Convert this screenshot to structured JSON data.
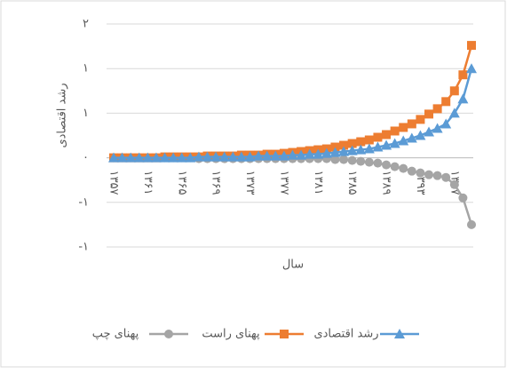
{
  "chart_data": {
    "type": "line",
    "y_label": "رشد اقتصادی",
    "x_label": "سال",
    "categories": [
      "۱۳۵۷",
      null,
      null,
      null,
      "۱۳۶۱",
      null,
      null,
      null,
      "۱۳۶۵",
      null,
      null,
      null,
      "۱۳۶۹",
      null,
      null,
      null,
      "۱۳۷۳",
      null,
      null,
      null,
      "۱۳۷۷",
      null,
      null,
      null,
      "۱۳۸۱",
      null,
      null,
      null,
      "۱۳۸۵",
      null,
      null,
      null,
      "۱۳۸۹",
      null,
      null,
      null,
      "۱۳۹۳",
      null,
      null,
      null,
      "۱۳۹۷",
      null,
      null
    ],
    "series": [
      {
        "name": "رشد اقتصادی",
        "color": "#5b9bd5",
        "marker": "triangle",
        "values": [
          0,
          0,
          0,
          0,
          0,
          0,
          0,
          0,
          0,
          0,
          0.01,
          0.01,
          0.01,
          0.01,
          0.01,
          0.01,
          0.01,
          0.02,
          0.02,
          0.02,
          0.02,
          0.03,
          0.03,
          0.04,
          0.04,
          0.05,
          0.06,
          0.07,
          0.08,
          0.09,
          0.1,
          0.12,
          0.14,
          0.16,
          0.19,
          0.22,
          0.25,
          0.29,
          0.33,
          0.38,
          0.5,
          0.66,
          1.0
        ]
      },
      {
        "name": "پهنای راست",
        "color": "#ed7d31",
        "marker": "square",
        "values": [
          0,
          0,
          0,
          0,
          0,
          0,
          0.01,
          0.01,
          0.01,
          0.01,
          0.01,
          0.02,
          0.02,
          0.02,
          0.02,
          0.03,
          0.03,
          0.03,
          0.04,
          0.04,
          0.05,
          0.06,
          0.07,
          0.08,
          0.09,
          0.1,
          0.12,
          0.14,
          0.16,
          0.18,
          0.2,
          0.23,
          0.26,
          0.3,
          0.34,
          0.38,
          0.43,
          0.49,
          0.55,
          0.63,
          0.75,
          0.93,
          1.26
        ]
      },
      {
        "name": "پهنای چپ",
        "color": "#a5a5a5",
        "marker": "circle",
        "values": [
          0,
          0,
          0,
          0,
          0,
          0,
          0,
          0,
          0,
          0,
          -0.01,
          -0.01,
          -0.01,
          -0.01,
          -0.01,
          -0.01,
          -0.01,
          -0.01,
          -0.01,
          -0.01,
          -0.01,
          -0.01,
          -0.01,
          -0.01,
          -0.01,
          -0.01,
          -0.02,
          -0.02,
          -0.03,
          -0.04,
          -0.05,
          -0.06,
          -0.08,
          -0.1,
          -0.12,
          -0.15,
          -0.17,
          -0.19,
          -0.2,
          -0.22,
          -0.3,
          -0.45,
          -0.75
        ]
      }
    ],
    "ylim": [
      -1,
      1.5
    ],
    "yticks": [
      {
        "value": 1.5,
        "label": "۲"
      },
      {
        "value": 1,
        "label": "۱"
      },
      {
        "value": 0.5,
        "label": "۱"
      },
      {
        "value": 0,
        "label": "۰"
      },
      {
        "value": -0.5,
        "label": "-۱"
      },
      {
        "value": -1,
        "label": "-۱"
      }
    ],
    "grid": true,
    "legend": "bottom"
  }
}
